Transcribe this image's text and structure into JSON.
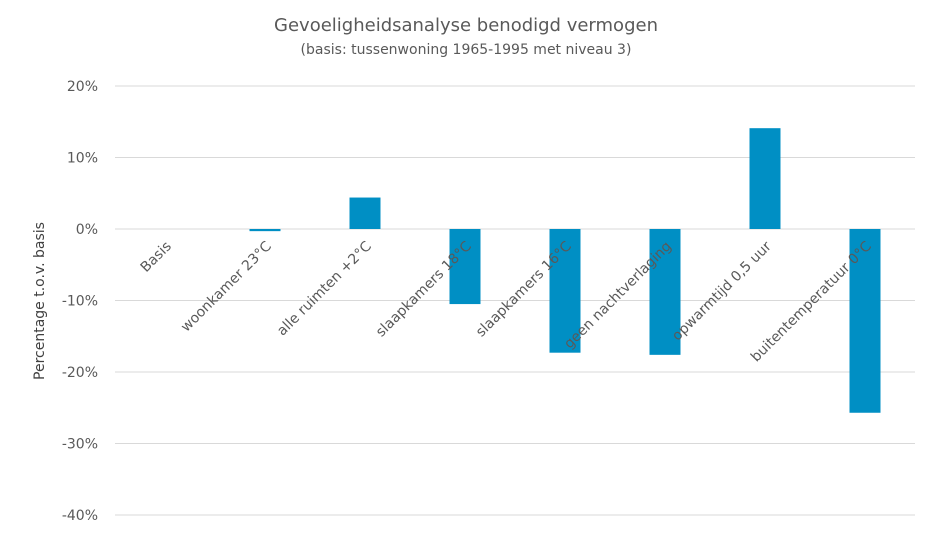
{
  "chart_data": {
    "type": "bar",
    "title": "Gevoeligheidsanalyse benodigd vermogen",
    "subtitle": "(basis: tussenwoning 1965-1995 met niveau 3)",
    "xlabel": "",
    "ylabel": "Percentage t.o.v. basis",
    "categories": [
      "Basis",
      "woonkamer 23°C",
      "alle ruimten +2°C",
      "slaapkamers 18°C",
      "slaapkamers 16°C",
      "geen nachtverlaging",
      "opwarmtijd 0,5 uur",
      "buitentemperatuur 0°C"
    ],
    "values": [
      0,
      -0.3,
      4.4,
      -10.5,
      -17.3,
      -17.6,
      14.1,
      -25.7
    ],
    "ylim": [
      -40,
      20
    ],
    "yticks": [
      20,
      10,
      0,
      -10,
      -20,
      -30,
      -40
    ],
    "ytick_labels": [
      "20%",
      "10%",
      "0%",
      "-10%",
      "-20%",
      "-30%",
      "-40%"
    ],
    "grid": true,
    "legend": "none",
    "bar_color": "#008FC4"
  }
}
